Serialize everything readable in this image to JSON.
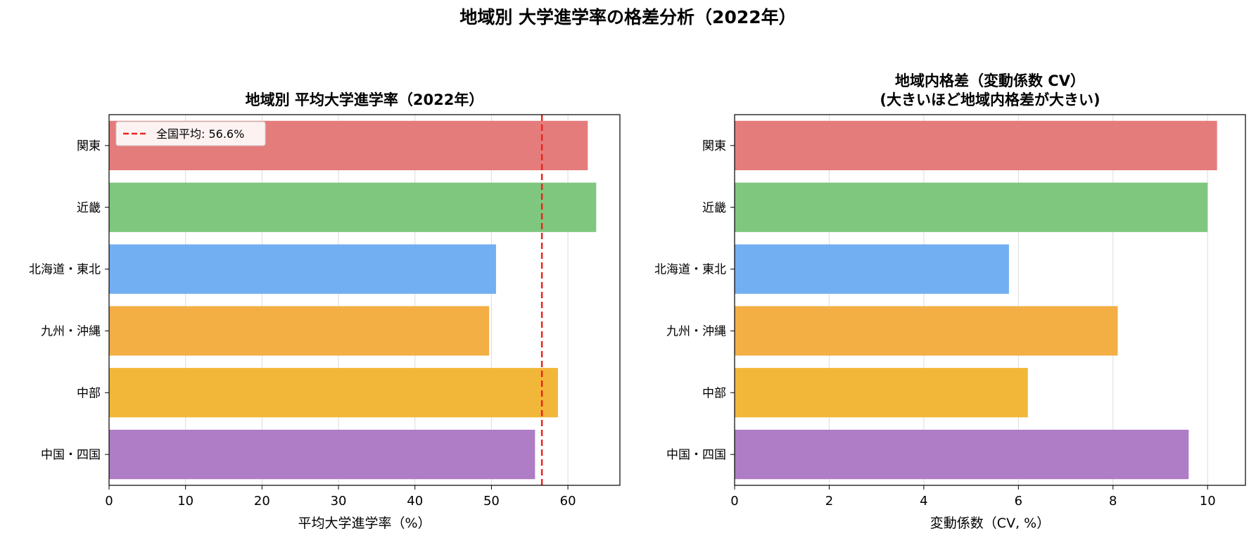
{
  "suptitle": "地域別 大学進学率の格差分析（2022年）",
  "chart_data": [
    {
      "type": "bar",
      "orientation": "horizontal",
      "title": "地域別 平均大学進学率（2022年）",
      "xlabel": "平均大学進学率（%）",
      "ylabel": "",
      "categories": [
        "関東",
        "近畿",
        "北海道・東北",
        "九州・沖縄",
        "中部",
        "中国・四国"
      ],
      "values": [
        62.6,
        63.7,
        50.6,
        49.7,
        58.7,
        55.7
      ],
      "colors": [
        "#e57c7c",
        "#7fc77f",
        "#72aef2",
        "#f3ae44",
        "#f2b738",
        "#ae7dc5"
      ],
      "xlim": [
        0,
        66.8
      ],
      "xticks": [
        0,
        10,
        20,
        30,
        40,
        50,
        60
      ],
      "grid": "x",
      "reference_line": {
        "value": 56.6,
        "label": "全国平均: 56.6%",
        "color": "#e8261e",
        "style": "dashed"
      },
      "legend": {
        "position": "top-left",
        "entries": [
          "全国平均: 56.6%"
        ]
      }
    },
    {
      "type": "bar",
      "orientation": "horizontal",
      "title": [
        "地域内格差（変動係数 CV）",
        "(大きいほど地域内格差が大きい)"
      ],
      "xlabel": "変動係数（CV, %）",
      "ylabel": "",
      "categories": [
        "関東",
        "近畿",
        "北海道・東北",
        "九州・沖縄",
        "中部",
        "中国・四国"
      ],
      "values": [
        10.2,
        10.0,
        5.8,
        8.1,
        6.2,
        9.6
      ],
      "colors": [
        "#e57c7c",
        "#7fc77f",
        "#72aef2",
        "#f3ae44",
        "#f2b738",
        "#ae7dc5"
      ],
      "xlim": [
        0,
        10.8
      ],
      "xticks": [
        0,
        2,
        4,
        6,
        8,
        10
      ],
      "grid": "x"
    }
  ]
}
